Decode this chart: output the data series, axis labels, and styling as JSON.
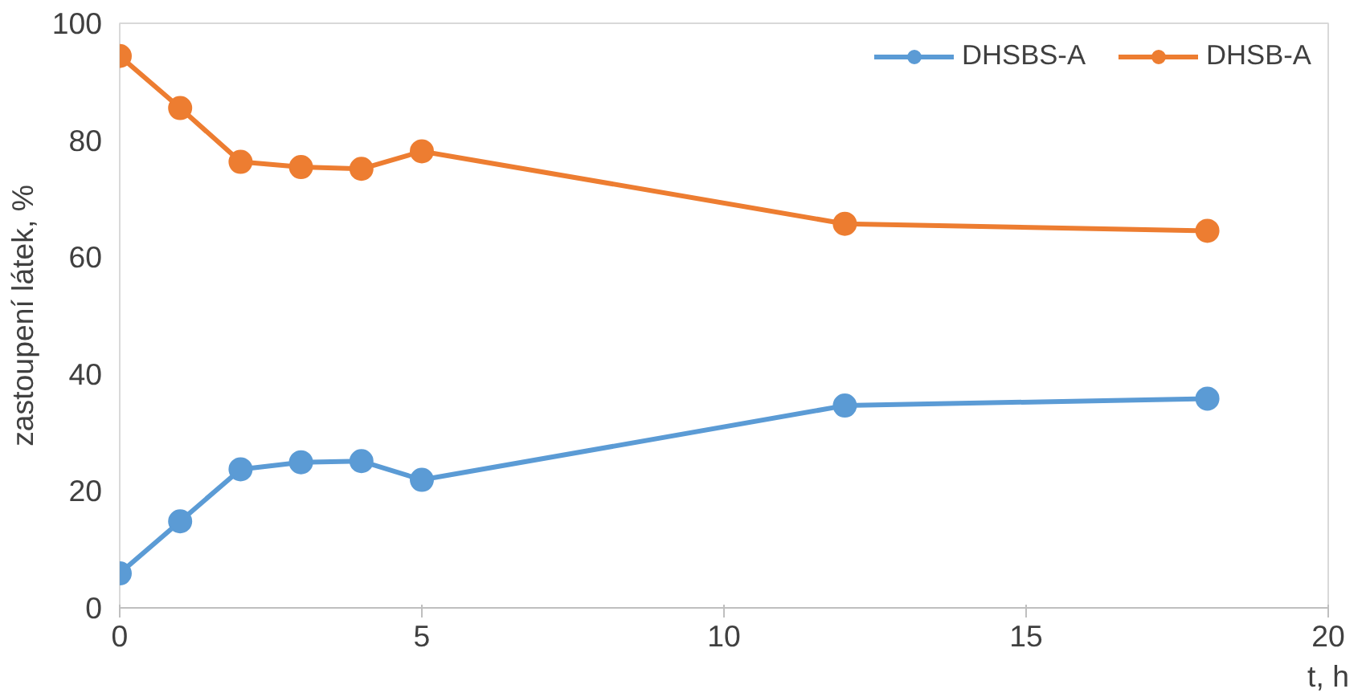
{
  "chart_data": {
    "type": "line",
    "xlabel": "t, h",
    "ylabel": "zastoupení látek, %",
    "x": [
      0,
      1,
      2,
      3,
      4,
      5,
      12,
      18
    ],
    "series": [
      {
        "name": "DHSBS-A",
        "color": "#5b9bd5",
        "values": [
          5.9,
          14.8,
          23.7,
          24.9,
          25.1,
          21.9,
          34.6,
          35.8
        ]
      },
      {
        "name": "DHSB-A",
        "color": "#ed7d31",
        "values": [
          94.4,
          85.5,
          76.3,
          75.4,
          75.1,
          78.1,
          65.7,
          64.5
        ]
      }
    ],
    "xlim": [
      0,
      20
    ],
    "xticks": [
      0,
      5,
      10,
      15,
      20
    ],
    "ylim": [
      0,
      100
    ],
    "yticks": [
      0,
      20,
      40,
      60,
      80,
      100
    ],
    "legend": "top right",
    "marker": "circle",
    "line_style": "solid"
  }
}
